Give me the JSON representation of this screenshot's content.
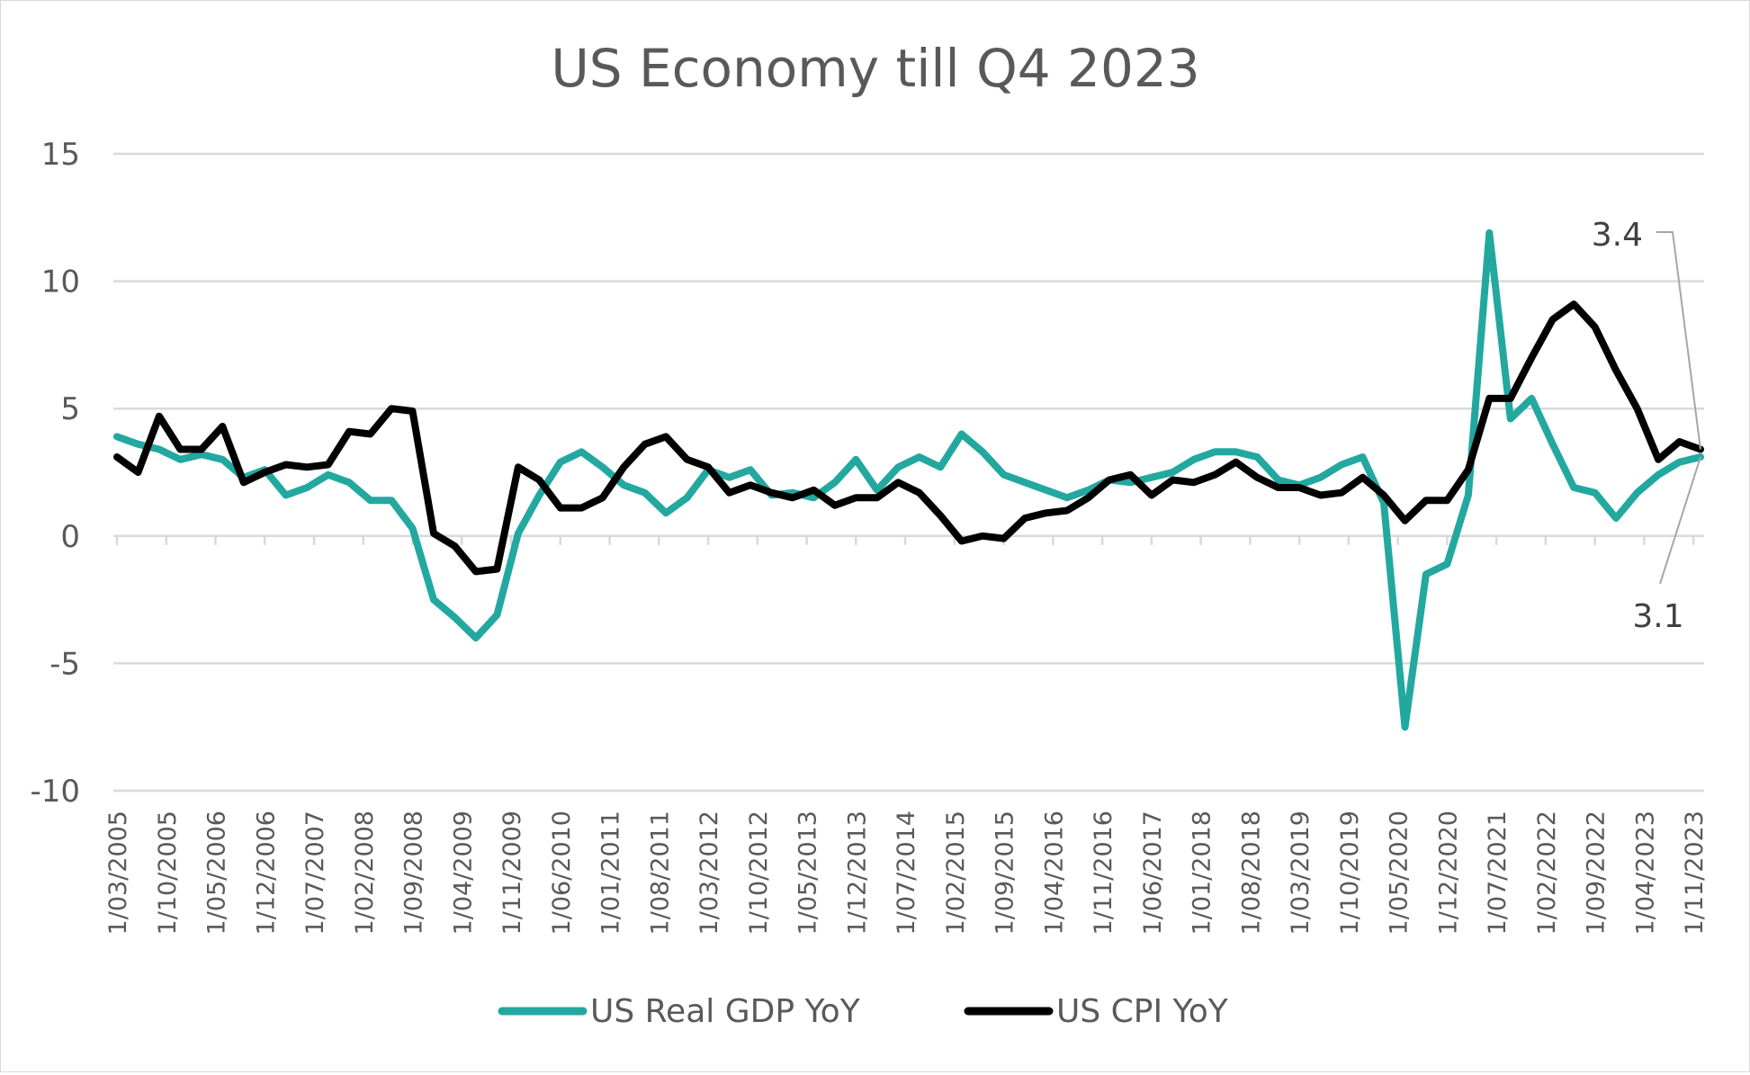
{
  "chart_data": {
    "type": "line",
    "title": "US Economy till Q4 2023",
    "xlabel": "",
    "ylabel": "",
    "ylim": [
      -10,
      15
    ],
    "yticks": [
      15,
      10,
      5,
      0,
      -5,
      -10
    ],
    "grid": true,
    "legend_position": "bottom",
    "x_tick_labels": [
      "1/03/2005",
      "1/10/2005",
      "1/05/2006",
      "1/12/2006",
      "1/07/2007",
      "1/02/2008",
      "1/09/2008",
      "1/04/2009",
      "1/11/2009",
      "1/06/2010",
      "1/01/2011",
      "1/08/2011",
      "1/03/2012",
      "1/10/2012",
      "1/05/2013",
      "1/12/2013",
      "1/07/2014",
      "1/02/2015",
      "1/09/2015",
      "1/04/2016",
      "1/11/2016",
      "1/06/2017",
      "1/01/2018",
      "1/08/2018",
      "1/03/2019",
      "1/10/2019",
      "1/05/2020",
      "1/12/2020",
      "1/07/2021",
      "1/02/2022",
      "1/09/2022",
      "1/04/2023",
      "1/11/2023"
    ],
    "x_start": "2005-03",
    "x_frequency": "quarterly",
    "series": [
      {
        "name": "US Real GDP YoY",
        "color": "#23a8a0",
        "values": [
          3.9,
          3.6,
          3.4,
          3.0,
          3.2,
          3.0,
          2.3,
          2.6,
          1.6,
          1.9,
          2.4,
          2.1,
          1.4,
          1.4,
          0.3,
          -2.5,
          -3.2,
          -4.0,
          -3.1,
          0.1,
          1.6,
          2.9,
          3.3,
          2.7,
          2.0,
          1.7,
          0.9,
          1.5,
          2.6,
          2.3,
          2.6,
          1.6,
          1.7,
          1.5,
          2.1,
          3.0,
          1.8,
          2.7,
          3.1,
          2.7,
          4.0,
          3.3,
          2.4,
          2.1,
          1.8,
          1.5,
          1.8,
          2.2,
          2.1,
          2.3,
          2.5,
          3.0,
          3.3,
          3.3,
          3.1,
          2.2,
          2.0,
          2.3,
          2.8,
          3.1,
          1.3,
          -7.5,
          -1.5,
          -1.1,
          1.6,
          11.9,
          4.6,
          5.4,
          3.6,
          1.9,
          1.7,
          0.7,
          1.7,
          2.4,
          2.9,
          3.1
        ]
      },
      {
        "name": "US CPI YoY",
        "color": "#000000",
        "values": [
          3.1,
          2.5,
          4.7,
          3.4,
          3.4,
          4.3,
          2.1,
          2.5,
          2.8,
          2.7,
          2.8,
          4.1,
          4.0,
          5.0,
          4.9,
          0.1,
          -0.4,
          -1.4,
          -1.3,
          2.7,
          2.2,
          1.1,
          1.1,
          1.5,
          2.7,
          3.6,
          3.9,
          3.0,
          2.7,
          1.7,
          2.0,
          1.7,
          1.5,
          1.8,
          1.2,
          1.5,
          1.5,
          2.1,
          1.7,
          0.8,
          -0.2,
          0.0,
          -0.1,
          0.7,
          0.9,
          1.0,
          1.5,
          2.2,
          2.4,
          1.6,
          2.2,
          2.1,
          2.4,
          2.9,
          2.3,
          1.9,
          1.9,
          1.6,
          1.7,
          2.3,
          1.6,
          0.6,
          1.4,
          1.4,
          2.6,
          5.4,
          5.4,
          7.0,
          8.5,
          9.1,
          8.2,
          6.5,
          5.0,
          3.0,
          3.7,
          3.4
        ]
      }
    ],
    "annotations": [
      {
        "text": "3.4",
        "series": "US CPI YoY"
      },
      {
        "text": "3.1",
        "series": "US Real GDP YoY"
      }
    ]
  }
}
